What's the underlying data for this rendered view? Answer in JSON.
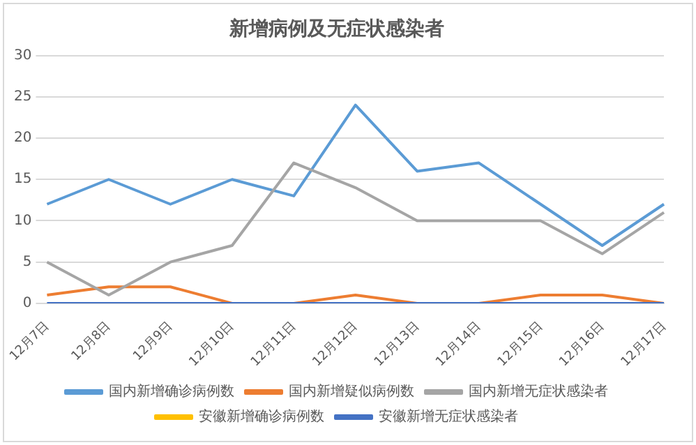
{
  "chart_data": {
    "type": "line",
    "title": "新增病例及无症状感染者",
    "categories": [
      "12月7日",
      "12月8日",
      "12月9日",
      "12月10日",
      "12月11日",
      "12月12日",
      "12月13日",
      "12月14日",
      "12月15日",
      "12月16日",
      "12月17日"
    ],
    "series": [
      {
        "name": "国内新增确诊病例数",
        "color": "#5b9bd5",
        "values": [
          12,
          15,
          12,
          15,
          13,
          24,
          16,
          17,
          12,
          7,
          12
        ]
      },
      {
        "name": "国内新增疑似病例数",
        "color": "#ed7d31",
        "values": [
          1,
          2,
          2,
          0,
          0,
          1,
          0,
          0,
          1,
          1,
          0
        ]
      },
      {
        "name": "国内新增无症状感染者",
        "color": "#a5a5a5",
        "values": [
          5,
          1,
          5,
          7,
          17,
          14,
          10,
          10,
          10,
          6,
          11
        ]
      },
      {
        "name": "安徽新增确诊病例数",
        "color": "#ffc000",
        "values": [
          null,
          null,
          null,
          null,
          null,
          null,
          null,
          null,
          null,
          null,
          null
        ]
      },
      {
        "name": "安徽新增无症状感染者",
        "color": "#4472c4",
        "values": [
          0,
          0,
          0,
          0,
          0,
          0,
          0,
          0,
          0,
          0,
          0
        ]
      }
    ],
    "ylim": [
      0,
      30
    ],
    "yticks": [
      0,
      5,
      10,
      15,
      20,
      25,
      30
    ],
    "grid": "y",
    "legend": "bottom",
    "marker": "none",
    "line_style": "solid"
  }
}
